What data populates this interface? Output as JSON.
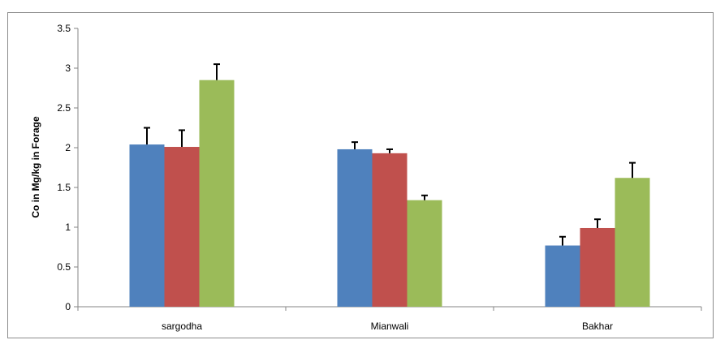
{
  "chart_data": {
    "type": "bar",
    "title": "",
    "xlabel": "",
    "ylabel": "Co in Mg/kg in Forage",
    "categories": [
      "sargodha",
      "Mianwali",
      "Bakhar"
    ],
    "series": [
      {
        "color": "#4f81bd",
        "values": [
          2.04,
          1.98,
          0.77
        ],
        "errors": [
          0.21,
          0.09,
          0.11
        ]
      },
      {
        "color": "#c0504d",
        "values": [
          2.01,
          1.93,
          0.99
        ],
        "errors": [
          0.21,
          0.05,
          0.11
        ]
      },
      {
        "color": "#9bbb59",
        "values": [
          2.85,
          1.34,
          1.62
        ],
        "errors": [
          0.2,
          0.06,
          0.19
        ]
      }
    ],
    "ylim": [
      0,
      3.5
    ],
    "yticks": [
      "0",
      "0.5",
      "1",
      "1.5",
      "2",
      "2.5",
      "3",
      "3.5"
    ],
    "grid": false,
    "legend": "none",
    "error_bar_color": "#000000"
  }
}
